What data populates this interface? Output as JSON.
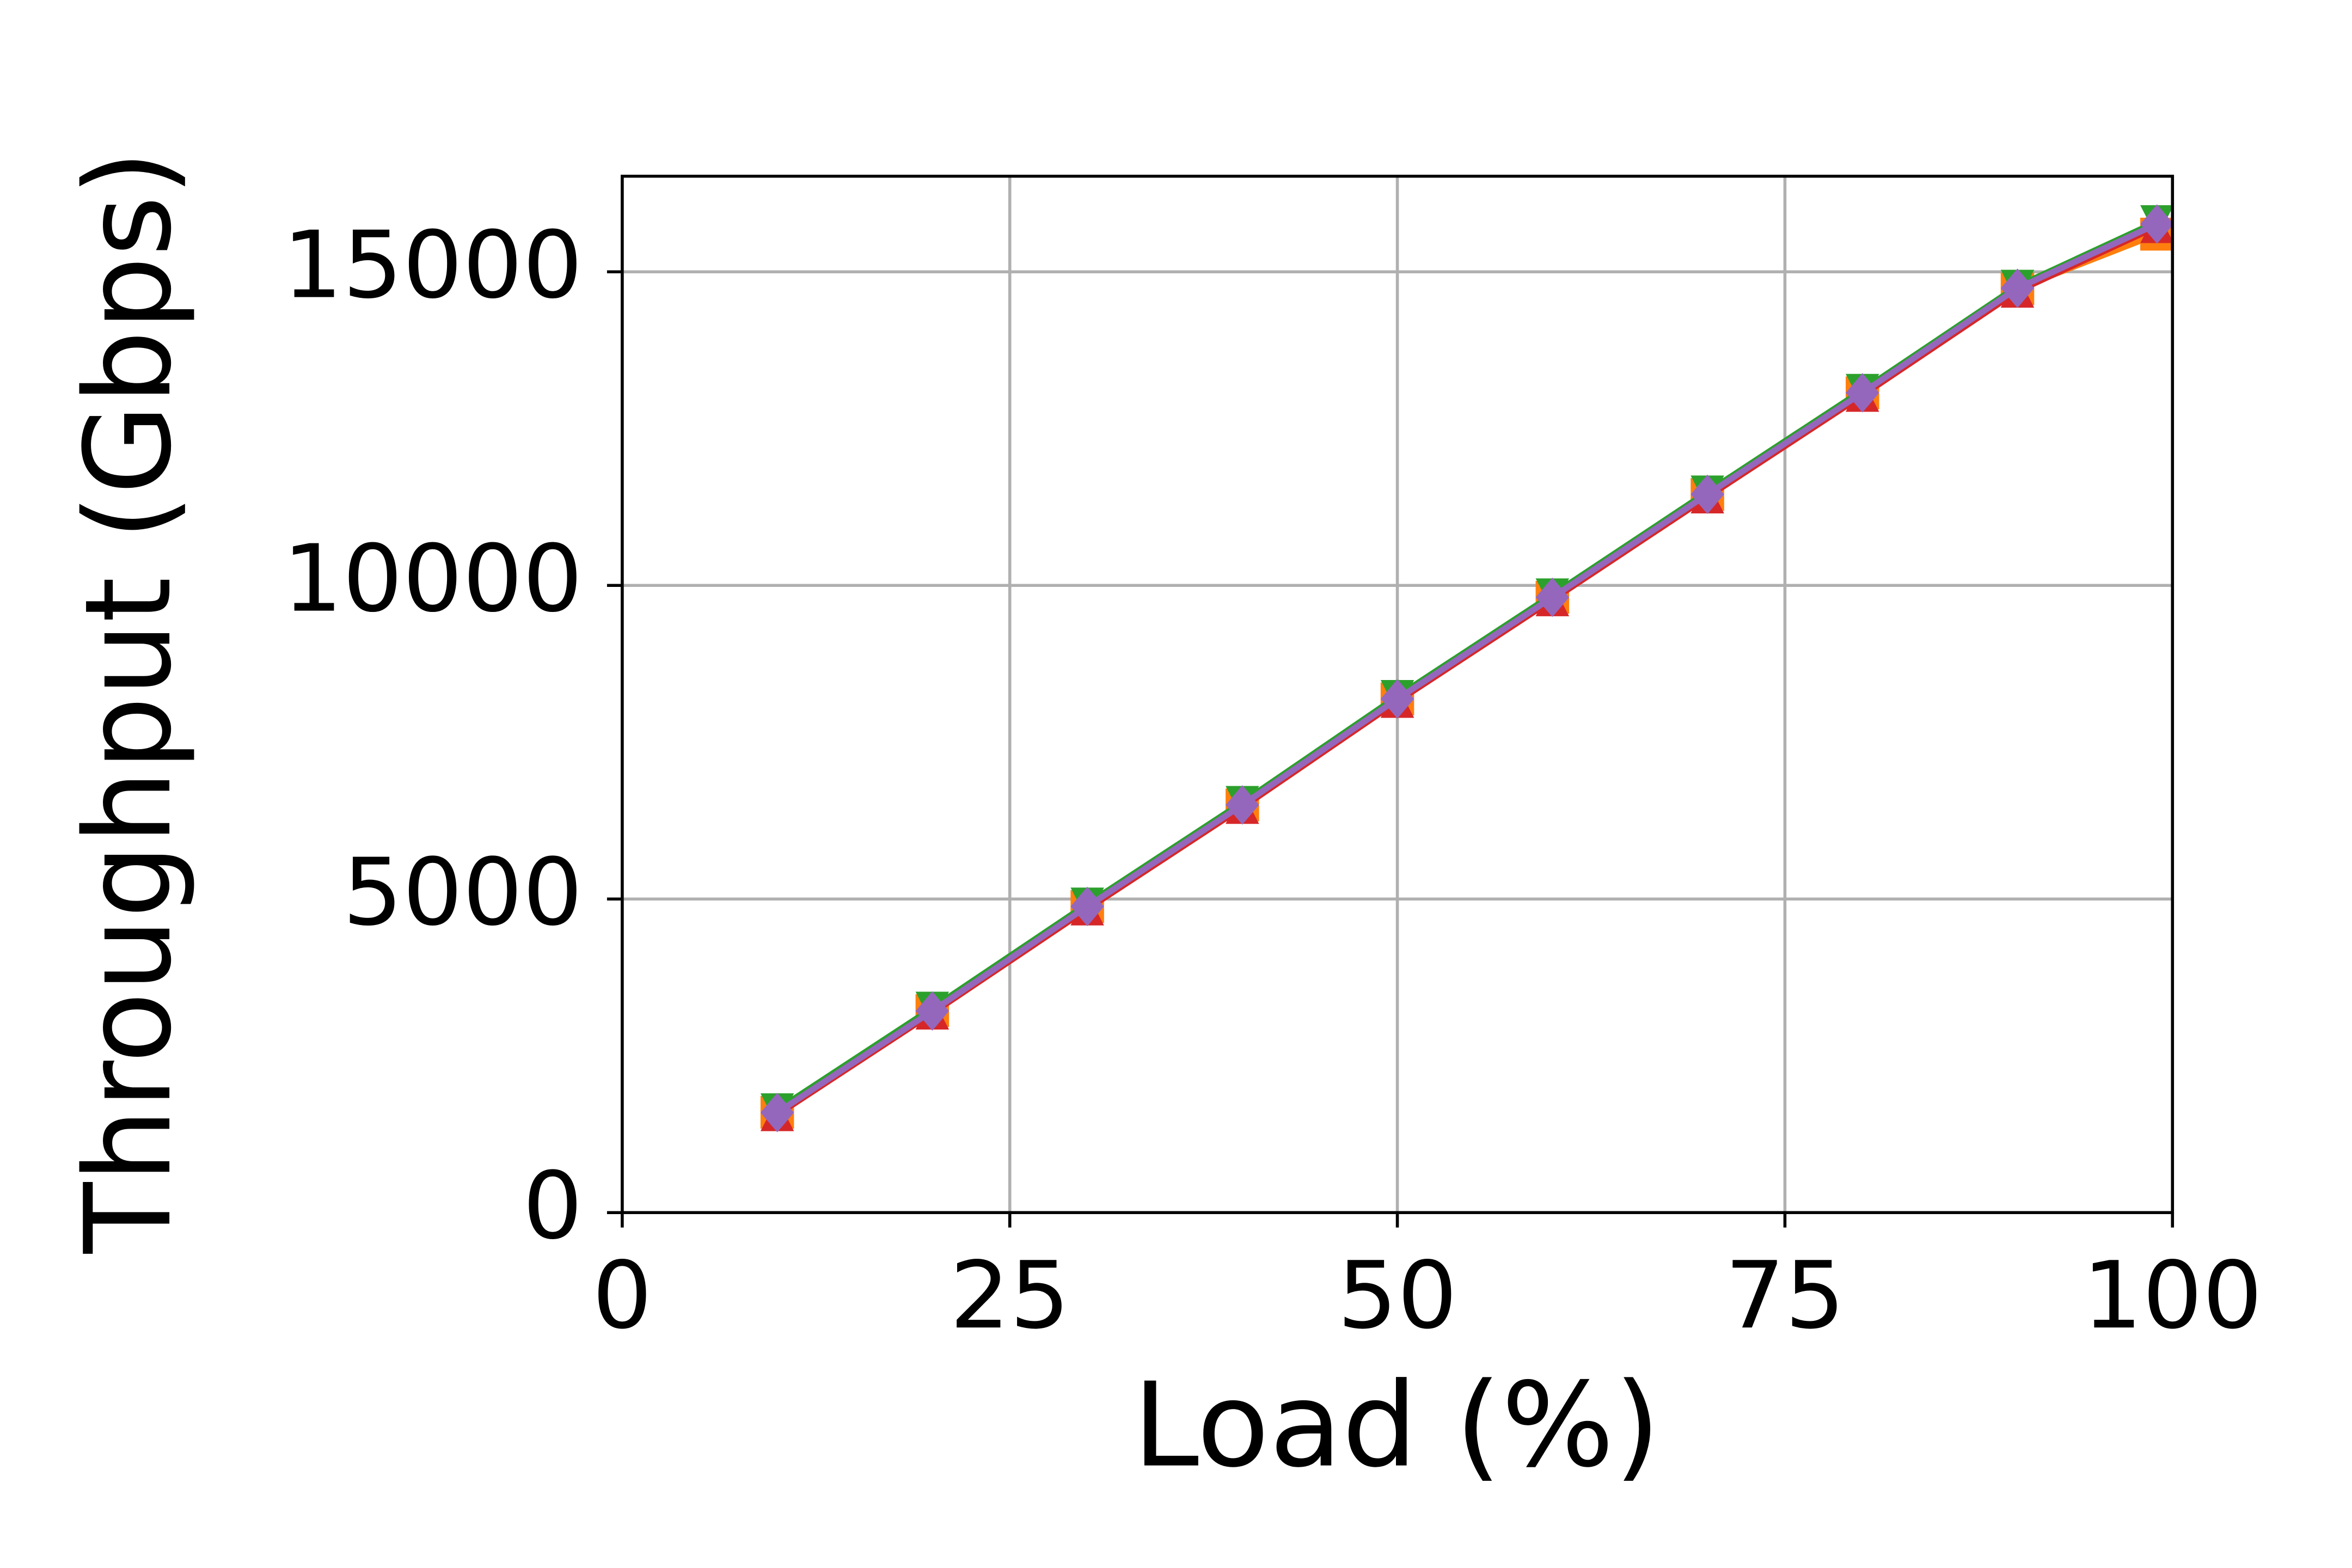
{
  "chart_data": {
    "type": "line",
    "xlabel": "Load (%)",
    "ylabel": "Throughput (Gbps)",
    "x": [
      10,
      20,
      30,
      40,
      50,
      60,
      70,
      80,
      90,
      99
    ],
    "series": [
      {
        "color": "#ff7f0e",
        "marker": "square",
        "values": [
          1600,
          3220,
          4880,
          6500,
          8190,
          9810,
          11450,
          13070,
          14730,
          15600
        ]
      },
      {
        "color": "#2ca02c",
        "marker": "triangle-down",
        "values": [
          1640,
          3260,
          4920,
          6540,
          8230,
          9850,
          11490,
          13110,
          14770,
          15800
        ]
      },
      {
        "color": "#d62728",
        "marker": "triangle-up",
        "values": [
          1560,
          3180,
          4840,
          6460,
          8150,
          9770,
          11410,
          13030,
          14690,
          15720
        ]
      },
      {
        "color": "#9467bd",
        "marker": "diamond",
        "values": [
          1595,
          3214,
          4881,
          6500,
          8190,
          9810,
          11452,
          13071,
          14738,
          15762
        ]
      }
    ],
    "xlim": [
      0,
      100
    ],
    "xticks": [
      0,
      25,
      50,
      75,
      100
    ],
    "ylim": [
      0,
      16524
    ],
    "yticks": [
      0,
      5000,
      10000,
      15000
    ],
    "grid": true
  }
}
